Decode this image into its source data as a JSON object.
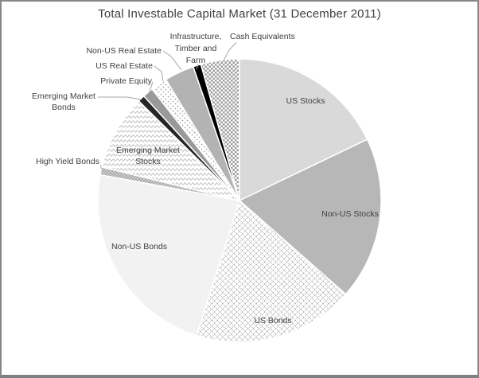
{
  "window": {
    "background": "#ffffff",
    "frame_border_color": "#808080"
  },
  "chart_data": {
    "type": "pie",
    "title": "Total Investable Capital Market (31 December 2011)",
    "start_angle_deg": 0,
    "direction": "clockwise",
    "legend": "none",
    "units": "percent",
    "label_color": "#404040",
    "leader_line_color": "#a6a6a6",
    "slice_gap_color": "#ffffff",
    "slices": [
      {
        "label": "US Stocks",
        "value": 17.9,
        "fill": "#d9d9d9",
        "label_placement": "inside"
      },
      {
        "label": "Non-US Stocks",
        "value": 18.6,
        "fill": "#b7b7b7",
        "label_placement": "inside"
      },
      {
        "label": "US Bonds",
        "value": 18.4,
        "fill": "pattern:pat-usbonds",
        "label_placement": "inside"
      },
      {
        "label": "Non-US Bonds",
        "value": 23.0,
        "fill": "#f2f2f2",
        "label_placement": "inside"
      },
      {
        "label": "High Yield Bonds",
        "value": 0.9,
        "fill": "pattern:pat-hy",
        "label_placement": "outside"
      },
      {
        "label": "Emerging Market Stocks",
        "value": 8.6,
        "fill": "pattern:pat-emstocks",
        "label_placement": "inside"
      },
      {
        "label": "Emerging Market Bonds",
        "value": 0.8,
        "fill": "#262626",
        "label_placement": "outside"
      },
      {
        "label": "Private Equity",
        "value": 1.2,
        "fill": "#999999",
        "label_placement": "outside"
      },
      {
        "label": "US Real Estate",
        "value": 1.9,
        "fill": "pattern:pat-usre",
        "label_placement": "outside"
      },
      {
        "label": "Non-US Real Estate",
        "value": 3.4,
        "fill": "#b3b3b3",
        "label_placement": "outside"
      },
      {
        "label": "Infrastructure, Timber and Farm",
        "value": 0.9,
        "fill": "#000000",
        "label_placement": "outside"
      },
      {
        "label": "Cash Equivalents",
        "value": 4.4,
        "fill": "pattern:pat-checker",
        "label_placement": "outside"
      }
    ]
  },
  "labels": {
    "us_stocks": "US Stocks",
    "non_us_stocks": "Non-US Stocks",
    "us_bonds": "US Bonds",
    "non_us_bonds": "Non-US Bonds",
    "high_yield": "High Yield Bonds",
    "em_stocks_1": "Emerging Market",
    "em_stocks_2": "Stocks",
    "em_bonds_1": "Emerging Market",
    "em_bonds_2": "Bonds",
    "private_equity": "Private Equity",
    "us_real_estate": "US Real Estate",
    "non_us_real_estate": "Non-US Real Estate",
    "infra_1": "Infrastructure,",
    "infra_2": "Timber and",
    "infra_3": "Farm",
    "cash_equivalents": "Cash Equivalents"
  }
}
